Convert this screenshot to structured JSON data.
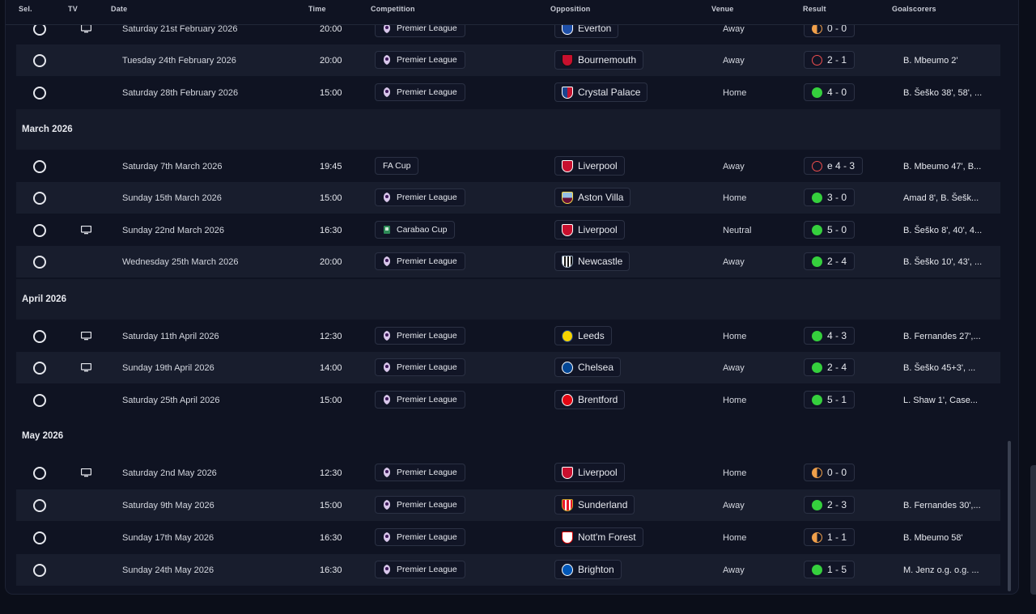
{
  "headers": {
    "sel": "Sel.",
    "tv": "TV",
    "date": "Date",
    "time": "Time",
    "competition": "Competition",
    "opposition": "Opposition",
    "venue": "Venue",
    "result": "Result",
    "goalscorers": "Goalscorers"
  },
  "months": {
    "march": "March 2026",
    "april": "April 2026",
    "may": "May 2026"
  },
  "fixtures": [
    {
      "date": "Saturday 21st February 2026",
      "time": "20:00",
      "competition": "Premier League",
      "opposition": "Everton",
      "venue": "Away",
      "result": "0 - 0",
      "outcome": "draw",
      "scorers": "",
      "tv": true
    },
    {
      "date": "Tuesday 24th February 2026",
      "time": "20:00",
      "competition": "Premier League",
      "opposition": "Bournemouth",
      "venue": "Away",
      "result": "2 - 1",
      "outcome": "loss",
      "scorers": "B. Mbeumo 2'",
      "tv": false
    },
    {
      "date": "Saturday 28th February 2026",
      "time": "15:00",
      "competition": "Premier League",
      "opposition": "Crystal Palace",
      "venue": "Home",
      "result": "4 - 0",
      "outcome": "win",
      "scorers": "B. Šeško 38', 58', ...",
      "tv": false
    },
    {
      "date": "Saturday 7th March 2026",
      "time": "19:45",
      "competition": "FA Cup",
      "opposition": "Liverpool",
      "venue": "Away",
      "result": "e 4 - 3",
      "outcome": "loss",
      "scorers": "B. Mbeumo 47', B...",
      "tv": false
    },
    {
      "date": "Sunday 15th March 2026",
      "time": "15:00",
      "competition": "Premier League",
      "opposition": "Aston Villa",
      "venue": "Home",
      "result": "3 - 0",
      "outcome": "win",
      "scorers": "Amad 8', B. Šešk...",
      "tv": false
    },
    {
      "date": "Sunday 22nd March 2026",
      "time": "16:30",
      "competition": "Carabao Cup",
      "opposition": "Liverpool",
      "venue": "Neutral",
      "result": "5 - 0",
      "outcome": "win",
      "scorers": "B. Šeško 8', 40', 4...",
      "tv": true
    },
    {
      "date": "Wednesday 25th March 2026",
      "time": "20:00",
      "competition": "Premier League",
      "opposition": "Newcastle",
      "venue": "Away",
      "result": "2 - 4",
      "outcome": "win",
      "scorers": "B. Šeško 10', 43', ...",
      "tv": false
    },
    {
      "date": "Saturday 11th April 2026",
      "time": "12:30",
      "competition": "Premier League",
      "opposition": "Leeds",
      "venue": "Home",
      "result": "4 - 3",
      "outcome": "win",
      "scorers": "B. Fernandes 27',...",
      "tv": true
    },
    {
      "date": "Sunday 19th April 2026",
      "time": "14:00",
      "competition": "Premier League",
      "opposition": "Chelsea",
      "venue": "Away",
      "result": "2 - 4",
      "outcome": "win",
      "scorers": "B. Šeško 45+3', ...",
      "tv": true
    },
    {
      "date": "Saturday 25th April 2026",
      "time": "15:00",
      "competition": "Premier League",
      "opposition": "Brentford",
      "venue": "Home",
      "result": "5 - 1",
      "outcome": "win",
      "scorers": "L. Shaw 1', Case...",
      "tv": false
    },
    {
      "date": "Saturday 2nd May 2026",
      "time": "12:30",
      "competition": "Premier League",
      "opposition": "Liverpool",
      "venue": "Home",
      "result": "0 - 0",
      "outcome": "draw",
      "scorers": "",
      "tv": true
    },
    {
      "date": "Saturday 9th May 2026",
      "time": "15:00",
      "competition": "Premier League",
      "opposition": "Sunderland",
      "venue": "Away",
      "result": "2 - 3",
      "outcome": "win",
      "scorers": "B. Fernandes 30',...",
      "tv": false
    },
    {
      "date": "Sunday 17th May 2026",
      "time": "16:30",
      "competition": "Premier League",
      "opposition": "Nott'm Forest",
      "venue": "Home",
      "result": "1 - 1",
      "outcome": "draw",
      "scorers": "B. Mbeumo 58'",
      "tv": false
    },
    {
      "date": "Sunday 24th May 2026",
      "time": "16:30",
      "competition": "Premier League",
      "opposition": "Brighton",
      "venue": "Away",
      "result": "1 - 5",
      "outcome": "win",
      "scorers": "M. Jenz o.g. o.g. ...",
      "tv": false
    }
  ],
  "colors": {
    "win": "#35d03d",
    "loss": "#ef4e4e",
    "draw": "#f0a04b",
    "background": "#0f1322",
    "row_alt": "#181d2d"
  }
}
